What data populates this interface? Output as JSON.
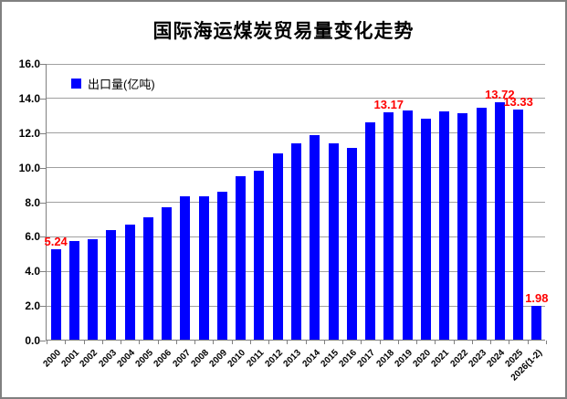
{
  "chart_data": {
    "type": "bar",
    "title": "国际海运煤炭贸易量变化走势",
    "legend": "出口量(亿吨)",
    "legend_position": "top-left-inside",
    "grid": "horizontal",
    "categories": [
      "2000",
      "2001",
      "2002",
      "2003",
      "2004",
      "2005",
      "2006",
      "2007",
      "2008",
      "2009",
      "2010",
      "2011",
      "2012",
      "2013",
      "2014",
      "2015",
      "2016",
      "2017",
      "2018",
      "2019",
      "2020",
      "2021",
      "2022",
      "2023",
      "2024",
      "2025",
      "2026(1-2)"
    ],
    "values": [
      5.24,
      5.7,
      5.79,
      6.35,
      6.65,
      7.1,
      7.68,
      8.3,
      8.28,
      8.57,
      9.43,
      9.75,
      10.78,
      11.35,
      11.85,
      11.33,
      11.1,
      12.56,
      13.17,
      13.25,
      12.8,
      13.22,
      13.12,
      13.4,
      13.72,
      13.33,
      1.98
    ],
    "ylim": [
      0,
      16
    ],
    "ytick_step": 2,
    "ytick_labels": [
      "0.0",
      "2.0",
      "4.0",
      "6.0",
      "8.0",
      "10.0",
      "12.0",
      "14.0",
      "16.0"
    ],
    "annotations": [
      {
        "category": "2000",
        "index": 0,
        "text": "5.24"
      },
      {
        "category": "2018",
        "index": 18,
        "text": "13.17"
      },
      {
        "category": "2024",
        "index": 24,
        "text": "13.72"
      },
      {
        "category": "2025",
        "index": 25,
        "text": "13.33"
      },
      {
        "category": "2026(1-2)",
        "index": 26,
        "text": "1.98"
      }
    ],
    "colors": {
      "bar": "#0000FF",
      "annotation": "#FF0000",
      "gridline": "#A0A0A0",
      "axis": "#808080",
      "border": "#808080",
      "text": "#000000",
      "background": "#FFFFFF"
    }
  }
}
